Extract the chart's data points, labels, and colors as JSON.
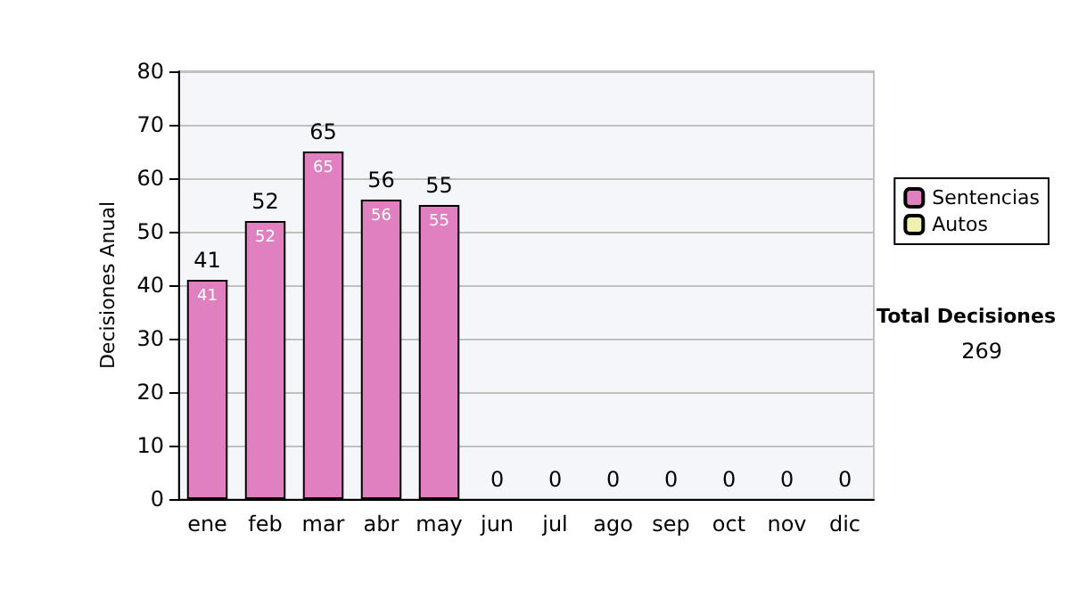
{
  "chart_data": {
    "type": "bar",
    "stacked": true,
    "ylabel": "Decisiones Anual",
    "categories": [
      "ene",
      "feb",
      "mar",
      "abr",
      "may",
      "jun",
      "jul",
      "ago",
      "sep",
      "oct",
      "nov",
      "dic"
    ],
    "series": [
      {
        "name": "Sentencias",
        "color": "#e080c0",
        "values": [
          41,
          52,
          65,
          56,
          55,
          0,
          0,
          0,
          0,
          0,
          0,
          0
        ],
        "value_labels": [
          "41",
          "52",
          "65",
          "56",
          "55",
          null,
          null,
          null,
          null,
          null,
          null,
          null
        ]
      },
      {
        "name": "Autos",
        "color": "#f0f0b0",
        "values": [
          0,
          0,
          0,
          0,
          0,
          0,
          0,
          0,
          0,
          0,
          0,
          0
        ]
      }
    ],
    "totals": [
      "41",
      "52",
      "65",
      "56",
      "55",
      "0",
      "0",
      "0",
      "0",
      "0",
      "0",
      "0"
    ],
    "ylim": [
      0,
      80
    ],
    "yticks": [
      0,
      10,
      20,
      30,
      40,
      50,
      60,
      70,
      80
    ],
    "grid": "y",
    "legend": "right",
    "annotations": [
      "Total Decisiones",
      "269"
    ]
  }
}
